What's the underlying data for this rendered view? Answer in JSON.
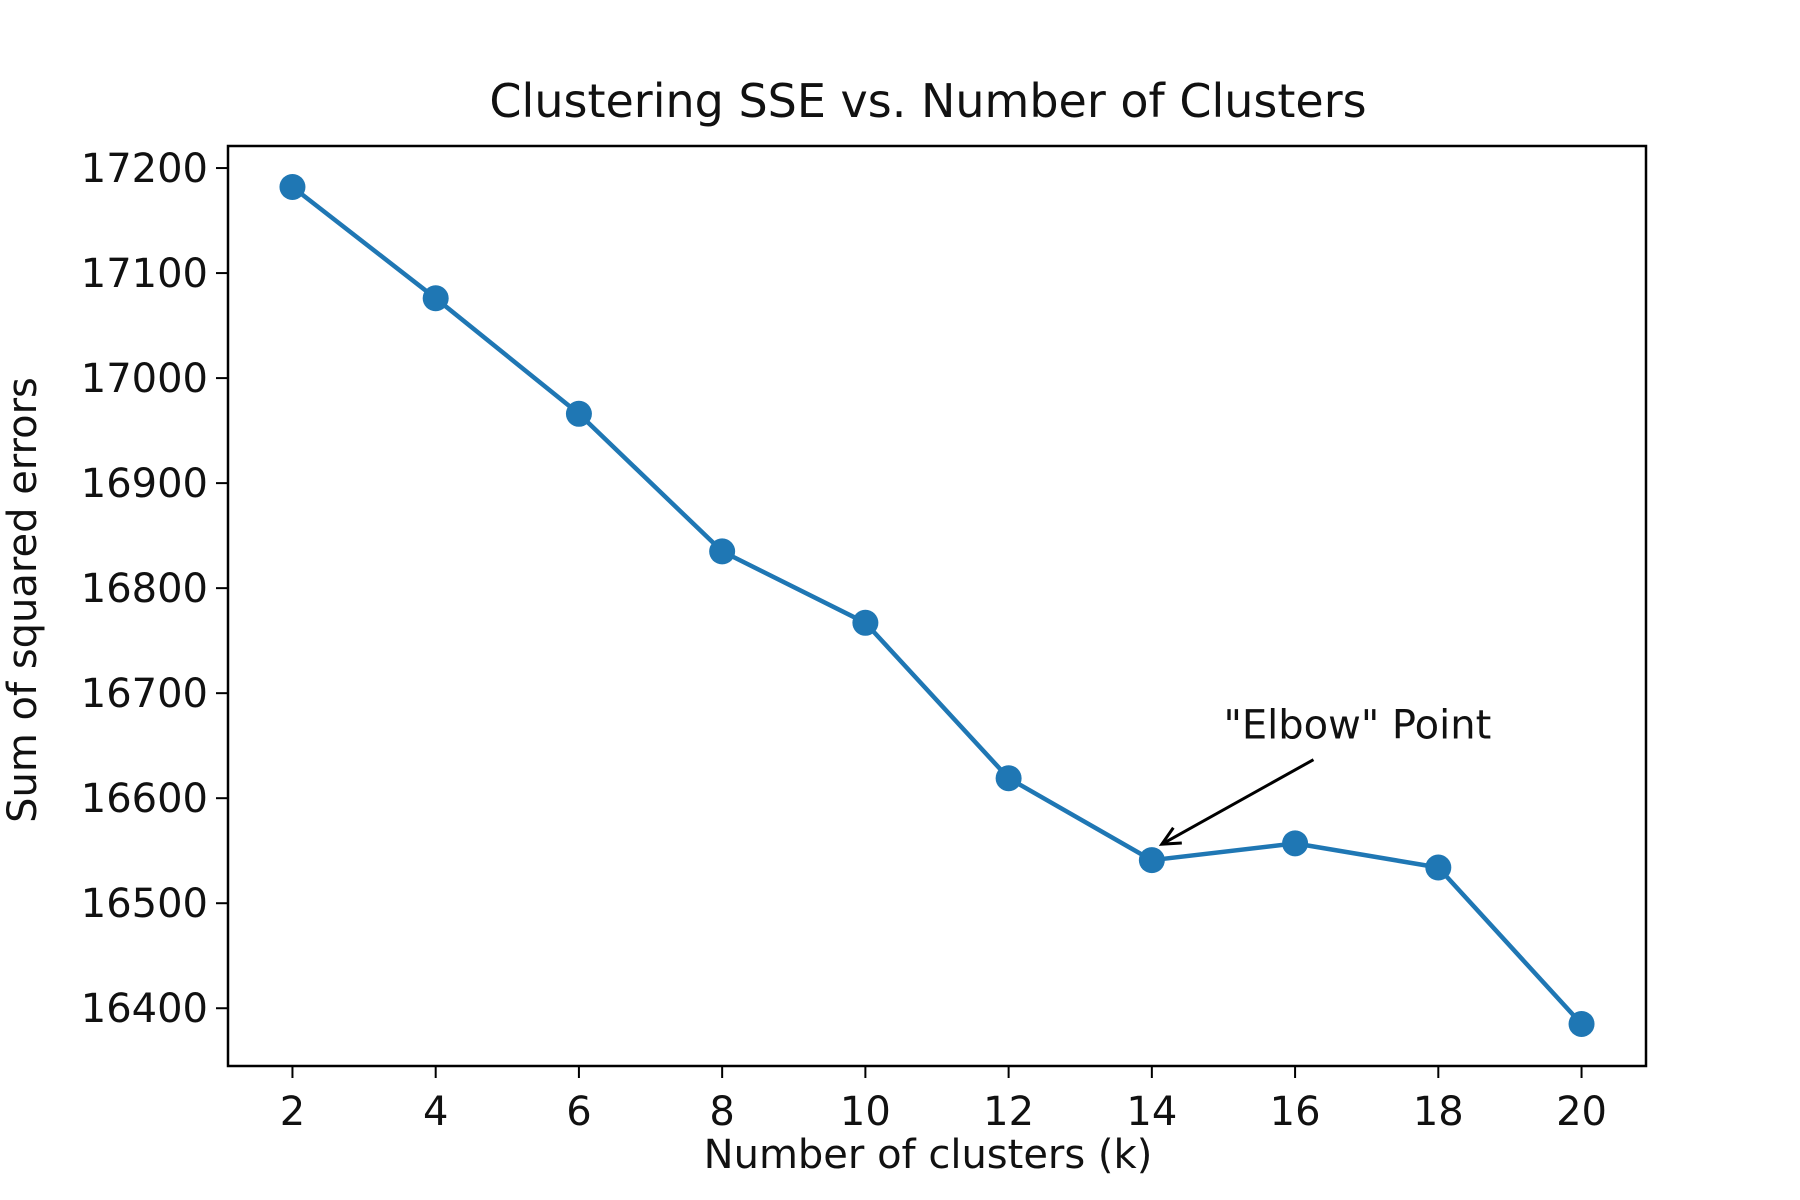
{
  "chart_data": {
    "type": "line",
    "title": "Clustering SSE vs. Number of Clusters",
    "xlabel": "Number of clusters (k)",
    "ylabel": "Sum of squared errors",
    "x": [
      2,
      4,
      6,
      8,
      10,
      12,
      14,
      16,
      18,
      20
    ],
    "series": [
      {
        "values": [
          17182,
          17076,
          16966,
          16835,
          16767,
          16619,
          16541,
          16557,
          16534,
          16385
        ]
      }
    ],
    "xlim": [
      1.1,
      20.9
    ],
    "ylim": [
      16345,
      17221
    ],
    "xticks": [
      "2",
      "4",
      "6",
      "8",
      "10",
      "12",
      "14",
      "16",
      "18",
      "20"
    ],
    "yticks": [
      "16400",
      "16500",
      "16600",
      "16700",
      "16800",
      "16900",
      "17000",
      "17100",
      "17200"
    ],
    "grid": false,
    "line_color": "#1f77b4",
    "marker": "circle",
    "annotation": {
      "text": "\"Elbow\" Point",
      "x": 14,
      "y": 16541,
      "text_x": 15,
      "text_y": 16670
    }
  }
}
